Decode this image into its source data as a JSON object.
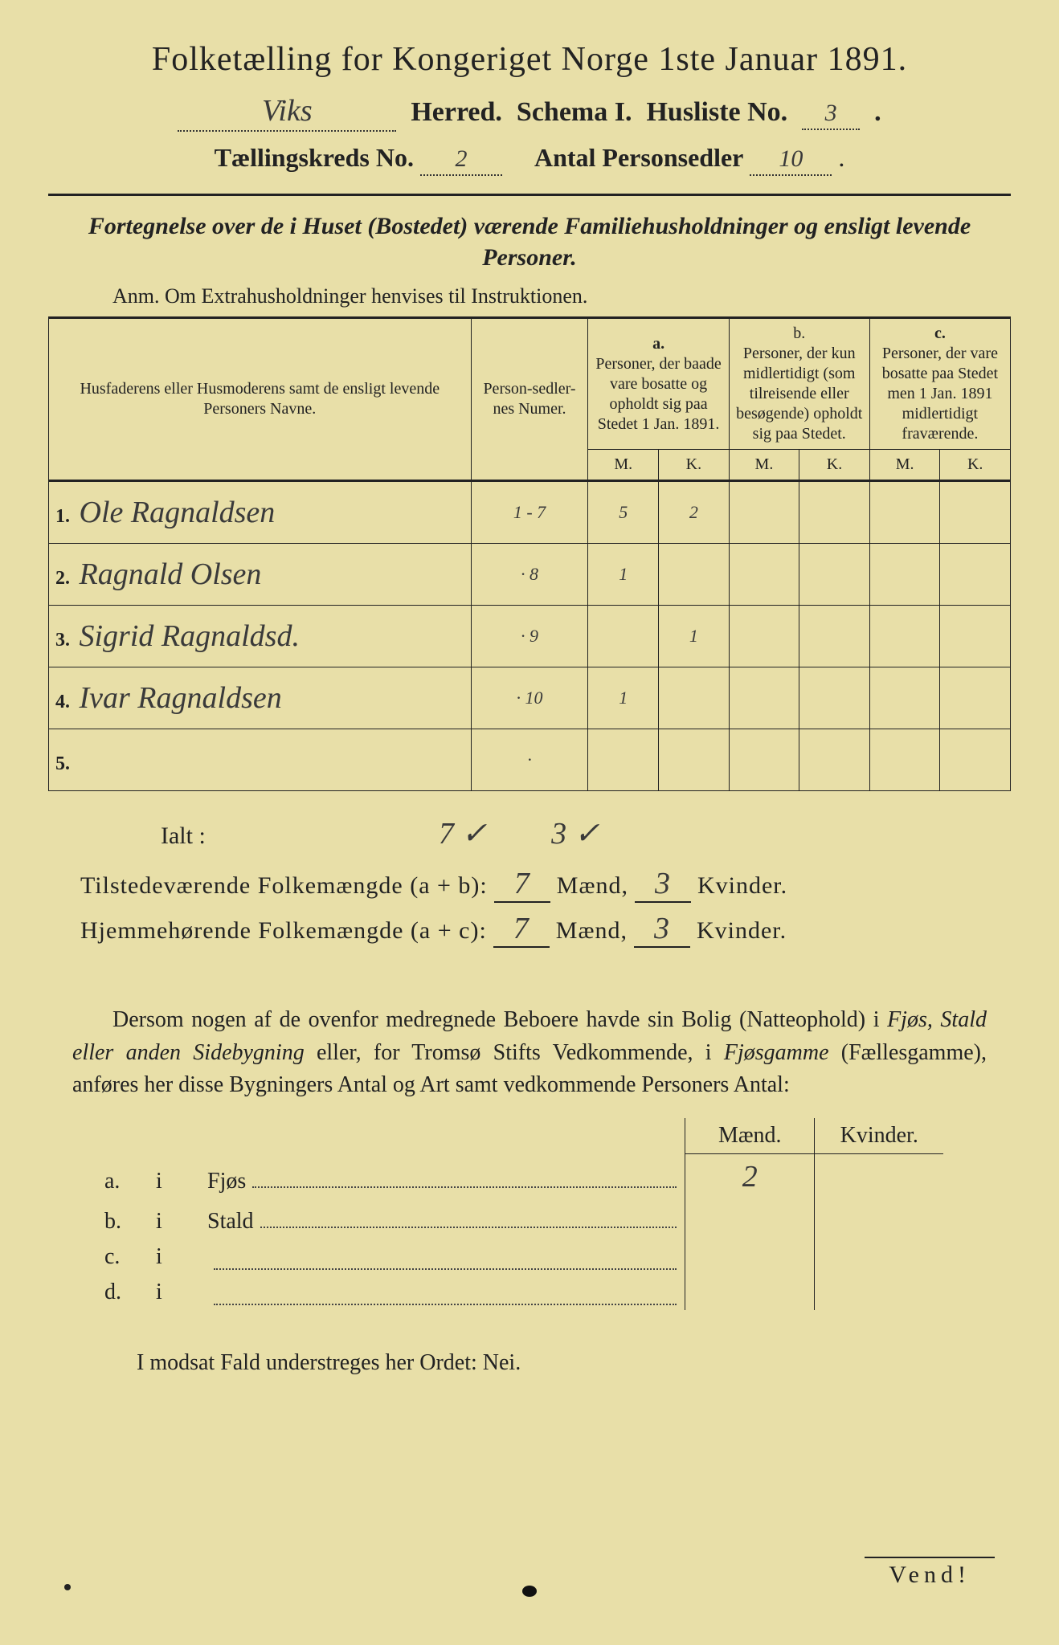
{
  "title": "Folketælling for Kongeriget Norge 1ste Januar 1891.",
  "header": {
    "herred_value": "Viks",
    "herred_label": "Herred.",
    "schema_label": "Schema I.",
    "husliste_label": "Husliste No.",
    "husliste_value": "3",
    "kreds_label": "Tællingskreds No.",
    "kreds_value": "2",
    "antal_label": "Antal Personsedler",
    "antal_value": "10"
  },
  "subtitle": "Fortegnelse over de i Huset (Bostedet) værende Familiehusholdninger og ensligt levende Personer.",
  "anm": "Anm.  Om Extrahusholdninger henvises til Instruktionen.",
  "cols": {
    "names": "Husfaderens eller Husmoderens samt de ensligt levende Personers Navne.",
    "numer": "Person-sedler-nes Numer.",
    "a_head": "a.",
    "a_text": "Personer, der baade vare bosatte og opholdt sig paa Stedet 1 Jan. 1891.",
    "b_head": "b.",
    "b_text": "Personer, der kun midlertidigt (som tilreisende eller besøgende) opholdt sig paa Stedet.",
    "c_head": "c.",
    "c_text": "Personer, der vare bosatte paa Stedet men 1 Jan. 1891 midlertidigt fraværende.",
    "m": "M.",
    "k": "K."
  },
  "rows": [
    {
      "n": "1.",
      "name": "Ole Ragnaldsen",
      "num": "1 - 7",
      "am": "5",
      "ak": "2",
      "bm": "",
      "bk": "",
      "cm": "",
      "ck": ""
    },
    {
      "n": "2.",
      "name": "Ragnald Olsen",
      "num": "· 8",
      "am": "1",
      "ak": "",
      "bm": "",
      "bk": "",
      "cm": "",
      "ck": ""
    },
    {
      "n": "3.",
      "name": "Sigrid Ragnaldsd.",
      "num": "· 9",
      "am": "",
      "ak": "1",
      "bm": "",
      "bk": "",
      "cm": "",
      "ck": ""
    },
    {
      "n": "4.",
      "name": "Ivar Ragnaldsen",
      "num": "· 10",
      "am": "1",
      "ak": "",
      "bm": "",
      "bk": "",
      "cm": "",
      "ck": ""
    },
    {
      "n": "5.",
      "name": "",
      "num": "·",
      "am": "",
      "ak": "",
      "bm": "",
      "bk": "",
      "cm": "",
      "ck": ""
    }
  ],
  "ialt_label": "Ialt :",
  "ialt_m": "7 ✓",
  "ialt_k": "3 ✓",
  "tot1": {
    "label": "Tilstedeværende Folkemængde (a + b):",
    "m": "7",
    "k": "3",
    "maend": "Mænd,",
    "kvinder": "Kvinder."
  },
  "tot2": {
    "label": "Hjemmehørende Folkemængde (a + c):",
    "m": "7",
    "k": "3",
    "maend": "Mænd,",
    "kvinder": "Kvinder."
  },
  "para1": "Dersom nogen af de ovenfor medregnede Beboere havde sin Bolig (Natteophold) i ",
  "para2": "Fjøs, Stald eller anden Sidebygning",
  "para3": " eller, for Tromsø Stifts Vedkommende, i ",
  "para4": "Fjøsgamme",
  "para5": " (Fællesgamme), anføres her disse Bygningers Antal og Art samt vedkommende Personers Antal:",
  "bld_head_m": "Mænd.",
  "bld_head_k": "Kvinder.",
  "buildings": [
    {
      "l": "a.",
      "i": "i",
      "name": "Fjøs",
      "m": "2",
      "k": ""
    },
    {
      "l": "b.",
      "i": "i",
      "name": "Stald",
      "m": "",
      "k": ""
    },
    {
      "l": "c.",
      "i": "i",
      "name": "",
      "m": "",
      "k": ""
    },
    {
      "l": "d.",
      "i": "i",
      "name": "",
      "m": "",
      "k": ""
    }
  ],
  "modsat": "I modsat Fald understreges her Ordet: Nei.",
  "vend": "Vend!"
}
